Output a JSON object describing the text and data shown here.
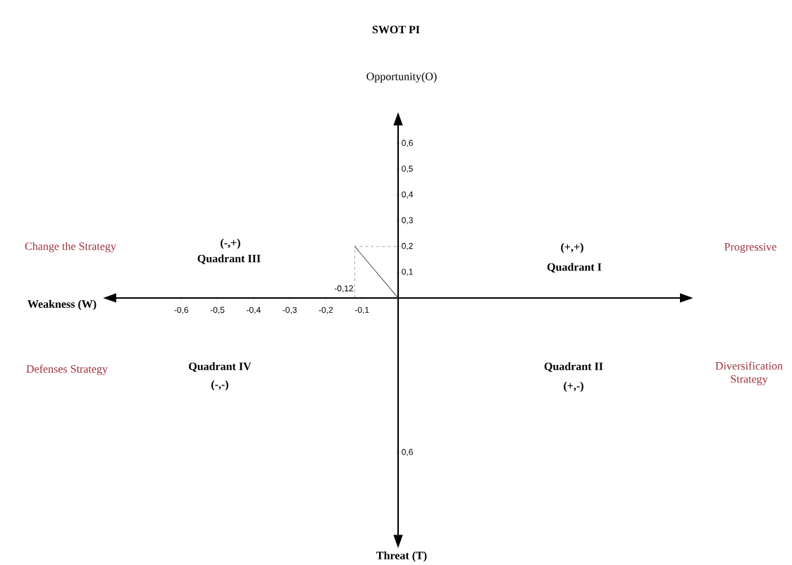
{
  "chart_data": {
    "type": "line",
    "title": "SWOT PI",
    "xlabel": "Weakness (W)",
    "ylabel": "Opportunity(O)",
    "x": [
      0,
      -0.12
    ],
    "values": [
      0,
      0.2
    ],
    "color": "#555555",
    "xlim": [
      -0.78,
      0.78
    ],
    "ylim": [
      -0.92,
      0.67
    ],
    "xticks": [
      {
        "value": -0.6,
        "label": "-0,6"
      },
      {
        "value": -0.5,
        "label": "-0,5"
      },
      {
        "value": -0.4,
        "label": "-0,4"
      },
      {
        "value": -0.3,
        "label": "-0,3"
      },
      {
        "value": -0.2,
        "label": "-0,2"
      },
      {
        "value": -0.1,
        "label": "-0,1"
      }
    ],
    "yticks": [
      {
        "value": -0.6,
        "label": "0,6"
      },
      {
        "value": 0.1,
        "label": "0,1"
      },
      {
        "value": 0.2,
        "label": "0,2"
      },
      {
        "value": 0.3,
        "label": "0,3"
      },
      {
        "value": 0.4,
        "label": "0,4"
      },
      {
        "value": 0.5,
        "label": "0,5"
      },
      {
        "value": 0.6,
        "label": "0,6"
      }
    ],
    "annotations": [
      "(-,+)",
      "Quadrant III",
      "(+,+)",
      "Quadrant I",
      "Quadrant IV",
      "(-,-)",
      "Quadrant II",
      "(+,-)",
      "Change the Strategy",
      "Progressive",
      "Defenses Strategy",
      "Diversification Strategy",
      "Threat (T)",
      "-0,12"
    ]
  }
}
